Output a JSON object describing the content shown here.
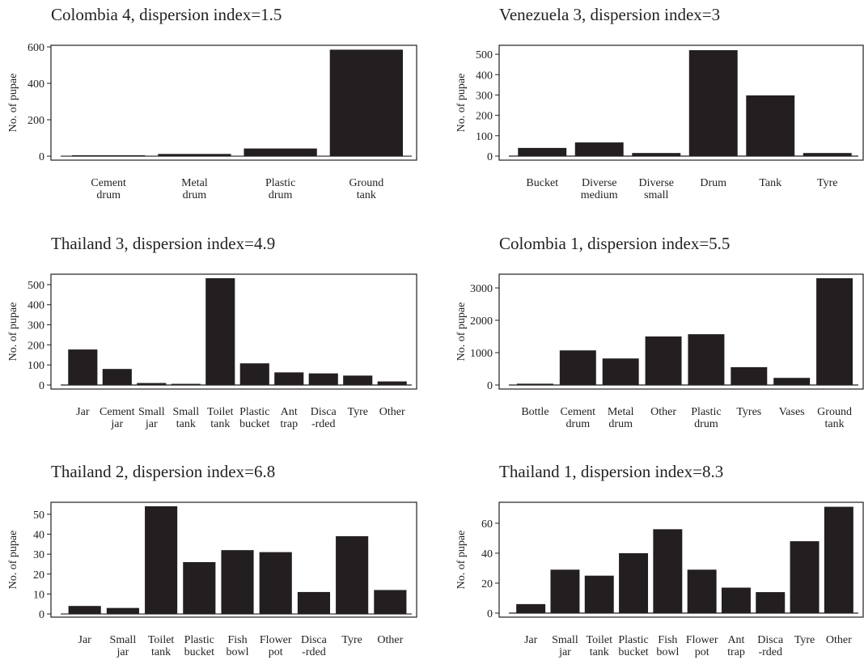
{
  "chart_data": [
    {
      "type": "bar",
      "title": "Colombia 4, dispersion index=1.5",
      "y_label": "No. of pupae",
      "color": "#231f20",
      "categories": [
        "Cement\ndrum",
        "Metal\ndrum",
        "Plastic\ndrum",
        "Ground\ntank"
      ],
      "values": [
        5,
        12,
        42,
        585
      ],
      "ylim": [
        -22,
        609
      ],
      "yticks": [
        0,
        200,
        400,
        600
      ]
    },
    {
      "type": "bar",
      "title": "Venezuela 3, dispersion index=3",
      "y_label": "No. of pupae",
      "color": "#231f20",
      "categories": [
        "Bucket",
        "Diverse\nmedium",
        "Diverse\nsmall",
        "Drum",
        "Tank",
        "Tyre"
      ],
      "values": [
        40,
        67,
        15,
        520,
        298,
        15
      ],
      "ylim": [
        -20,
        544
      ],
      "yticks": [
        0,
        100,
        200,
        300,
        400,
        500
      ]
    },
    {
      "type": "bar",
      "title": "Thailand 3, dispersion index=4.9",
      "y_label": "No. of pupae",
      "color": "#231f20",
      "categories": [
        "Jar",
        "Cement\njar",
        "Small\njar",
        "Small\ntank",
        "Toilet\ntank",
        "Plastic\nbucket",
        "Ant\ntrap",
        "Disca\n-rded",
        "Tyre",
        "Other"
      ],
      "values": [
        177,
        80,
        10,
        6,
        532,
        108,
        63,
        58,
        47,
        18
      ],
      "ylim": [
        -20,
        552
      ],
      "yticks": [
        0,
        100,
        200,
        300,
        400,
        500
      ]
    },
    {
      "type": "bar",
      "title": "Colombia 1, dispersion index=5.5",
      "y_label": "No. of pupae",
      "color": "#231f20",
      "categories": [
        "Bottle",
        "Cement\ndrum",
        "Metal\ndrum",
        "Other",
        "Plastic\ndrum",
        "Tyres",
        "Vases",
        "Ground\ntank"
      ],
      "values": [
        40,
        1070,
        820,
        1500,
        1570,
        550,
        220,
        3300
      ],
      "ylim": [
        -125,
        3425
      ],
      "yticks": [
        0,
        1000,
        2000,
        3000
      ]
    },
    {
      "type": "bar",
      "title": "Thailand 2, dispersion index=6.8",
      "y_label": "No. of pupae",
      "color": "#231f20",
      "categories": [
        "Jar",
        "Small\njar",
        "Toilet\ntank",
        "Plastic\nbucket",
        "Fish\nbowl",
        "Flower\npot",
        "Disca\n-rded",
        "Tyre",
        "Other"
      ],
      "values": [
        4,
        3,
        54,
        26,
        32,
        31,
        11,
        39,
        12
      ],
      "ylim": [
        -1.6,
        56
      ],
      "yticks": [
        0,
        10,
        20,
        30,
        40,
        50
      ]
    },
    {
      "type": "bar",
      "title": "Thailand 1, dispersion index=8.3",
      "y_label": "No. of pupae",
      "color": "#231f20",
      "categories": [
        "Jar",
        "Small\njar",
        "Toilet\ntank",
        "Plastic\nbucket",
        "Fish\nbowl",
        "Flower\npot",
        "Ant\ntrap",
        "Disca\n-rded",
        "Tyre",
        "Other"
      ],
      "values": [
        6,
        29,
        25,
        40,
        56,
        29,
        17,
        14,
        48,
        71
      ],
      "ylim": [
        -2.7,
        74
      ],
      "yticks": [
        0,
        20,
        40,
        60
      ]
    }
  ]
}
